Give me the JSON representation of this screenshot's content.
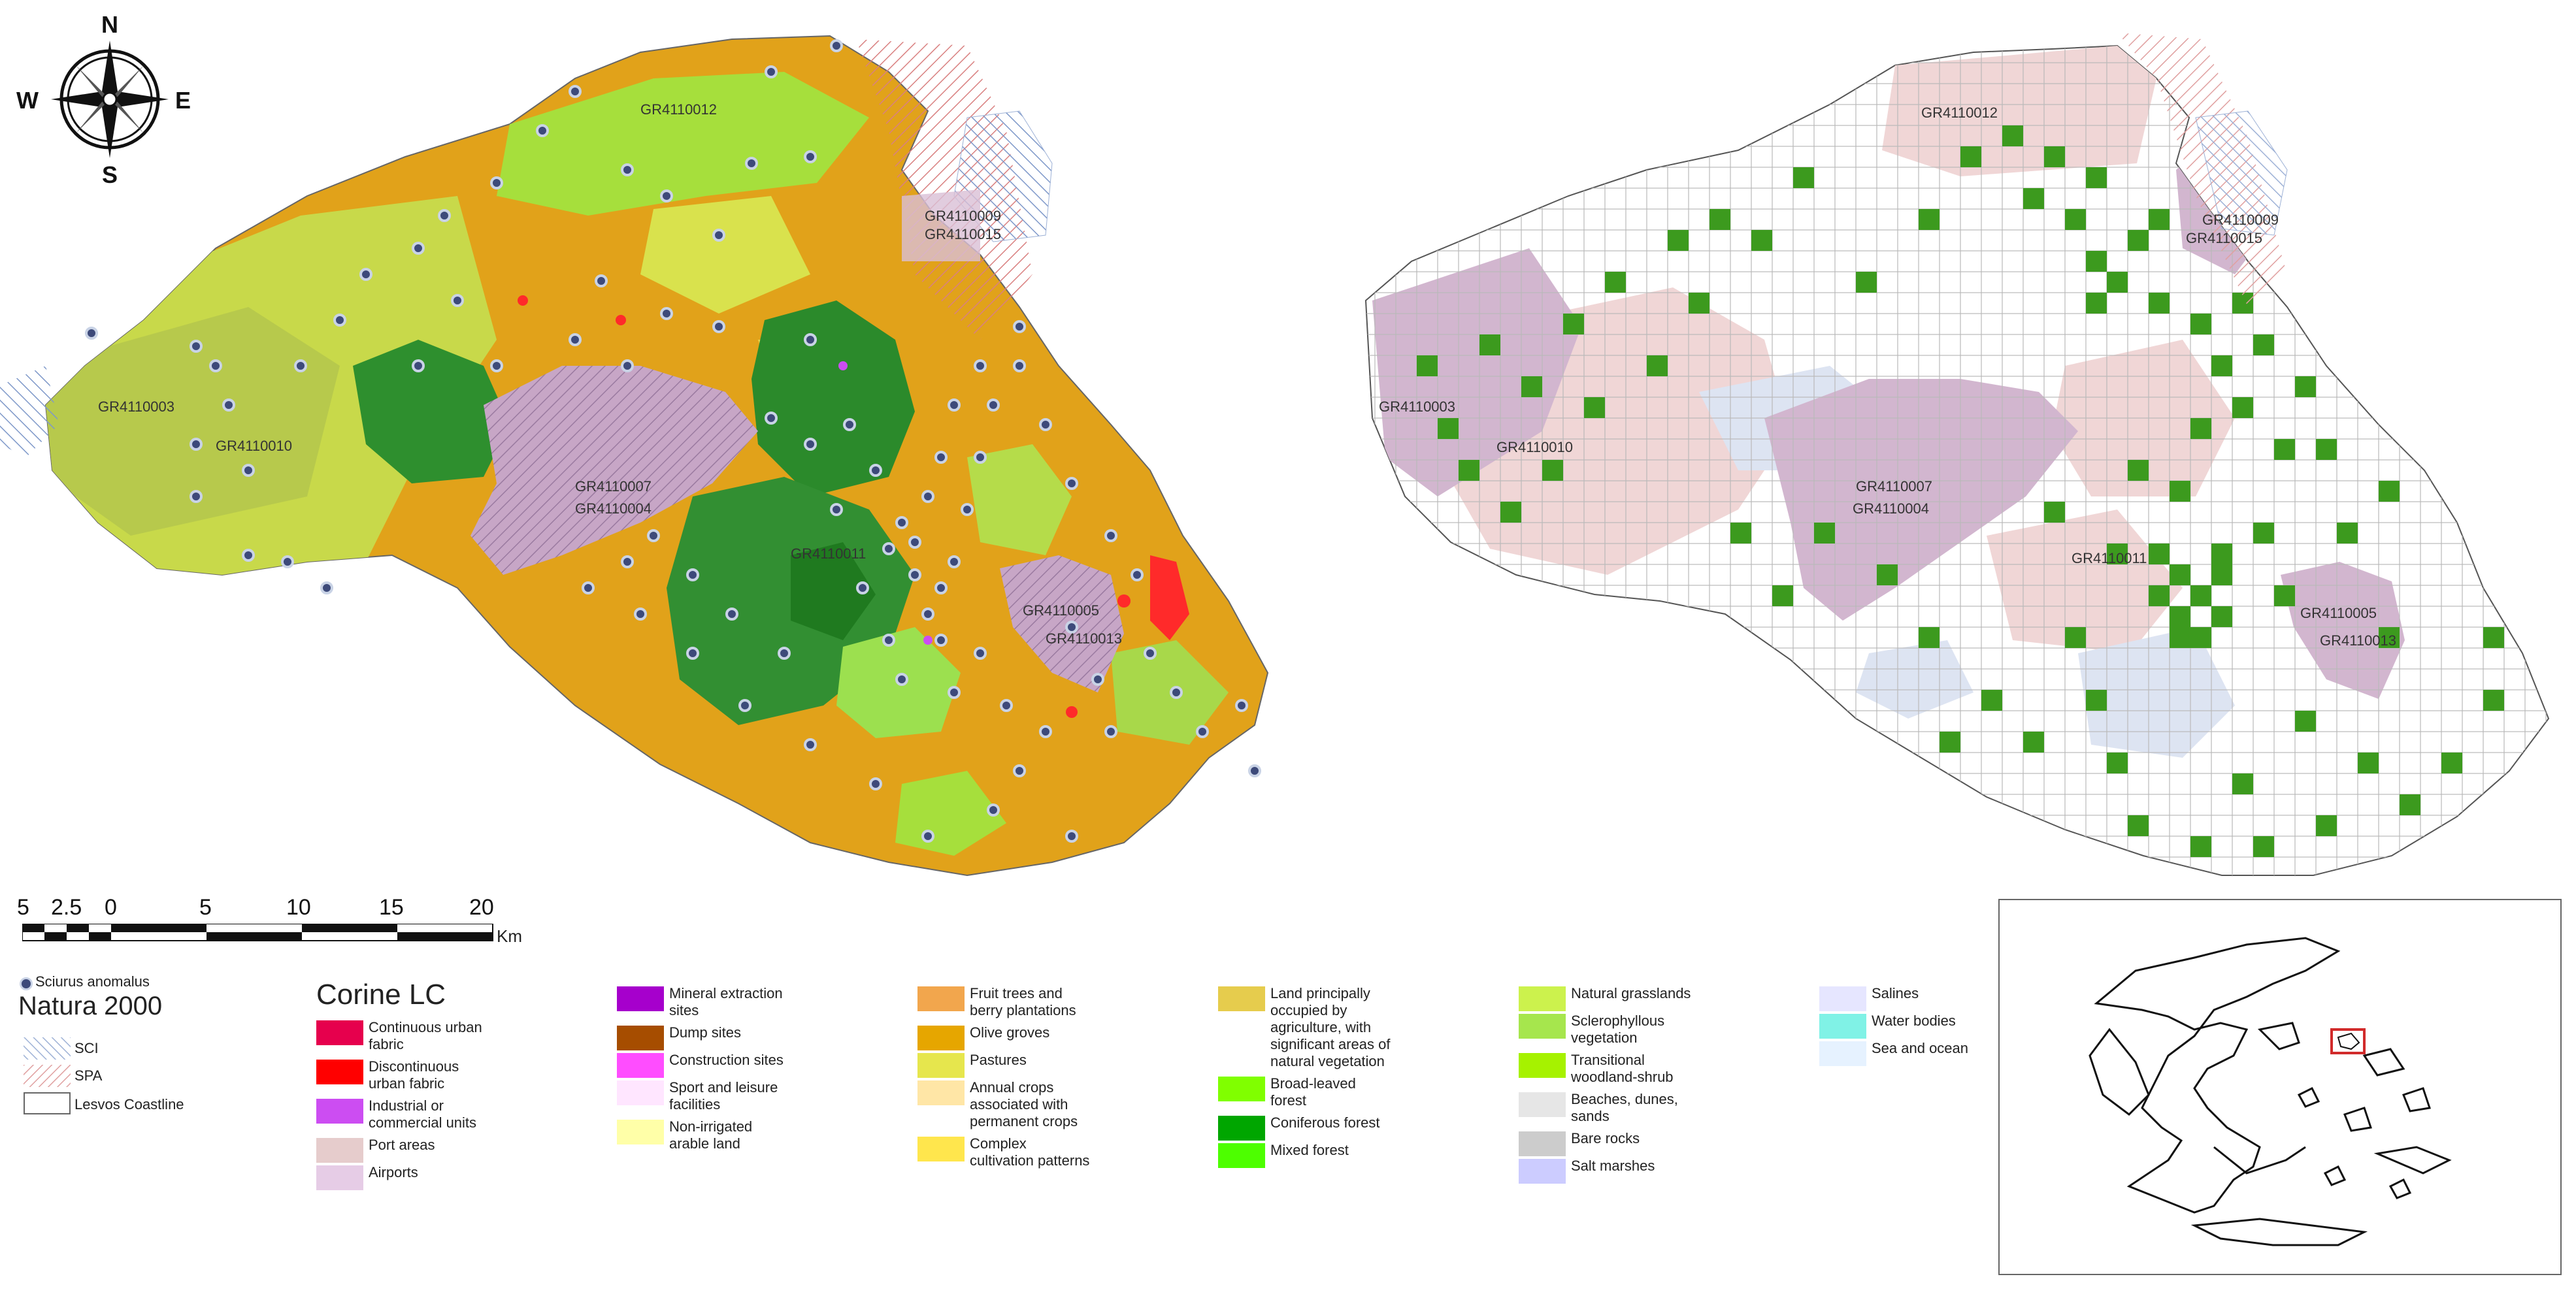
{
  "compass": {
    "n": "N",
    "s": "S",
    "e": "E",
    "w": "W"
  },
  "map_left": {
    "site_labels": [
      "GR4110012",
      "GR4110009",
      "GR4110015",
      "GR4110003",
      "GR4110010",
      "GR4110007",
      "GR4110004",
      "GR4110011",
      "GR4110005",
      "GR4110013"
    ]
  },
  "map_right": {
    "site_labels": [
      "GR4110012",
      "GR4110009",
      "GR4110015",
      "GR4110003",
      "GR4110010",
      "GR4110007",
      "GR4110004",
      "GR4110011",
      "GR4110005",
      "GR4110013"
    ]
  },
  "scalebar": {
    "ticks": [
      "5",
      "2.5",
      "0",
      "5",
      "10",
      "15",
      "20"
    ],
    "unit": "Km"
  },
  "legend_natura": {
    "points_label": "Sciurus anomalus",
    "title": "Natura 2000",
    "items": [
      {
        "label": "SCI",
        "color": "#a9bcdc",
        "icon": "hatch-blue"
      },
      {
        "label": "SPA",
        "color": "#e7b4b4",
        "icon": "hatch-red"
      },
      {
        "label": "Lesvos Coastline",
        "color": "#ffffff",
        "icon": "outline"
      }
    ]
  },
  "legend_corine": {
    "title": "Corine LC",
    "columns": [
      [
        {
          "label": "Continuous urban fabric",
          "color": "#e6004d"
        },
        {
          "label": "Discontinuous urban fabric",
          "color": "#ff0000"
        },
        {
          "label": "Industrial or commercial units",
          "color": "#cc4df2"
        },
        {
          "label": "Port areas",
          "color": "#e6cccc"
        },
        {
          "label": "Airports",
          "color": "#e6cce6"
        }
      ],
      [
        {
          "label": "Mineral extraction sites",
          "color": "#a600cc"
        },
        {
          "label": "Dump sites",
          "color": "#a64d00"
        },
        {
          "label": "Construction sites",
          "color": "#ff4dff"
        },
        {
          "label": "Sport and leisure facilities",
          "color": "#ffe6ff"
        },
        {
          "label": "Non-irrigated arable land",
          "color": "#ffffa8"
        }
      ],
      [
        {
          "label": "Fruit trees and berry plantations",
          "color": "#f2a64d"
        },
        {
          "label": "Olive groves",
          "color": "#e6a600"
        },
        {
          "label": "Pastures",
          "color": "#e6e64d"
        },
        {
          "label": "Annual crops associated with permanent crops",
          "color": "#ffe6a6"
        },
        {
          "label": "Complex cultivation patterns",
          "color": "#ffe64d"
        }
      ],
      [
        {
          "label": "Land principally occupied by agriculture, with significant areas of natural vegetation",
          "color": "#e6cc4d"
        },
        {
          "label": "Broad-leaved forest",
          "color": "#80ff00"
        },
        {
          "label": "Coniferous forest",
          "color": "#00a600"
        },
        {
          "label": "Mixed forest",
          "color": "#4dff00"
        }
      ],
      [
        {
          "label": "Natural grasslands",
          "color": "#ccf24d"
        },
        {
          "label": "Sclerophyllous vegetation",
          "color": "#a6e64d"
        },
        {
          "label": "Transitional woodland-shrub",
          "color": "#a6f200"
        },
        {
          "label": "Beaches, dunes, sands",
          "color": "#e6e6e6"
        },
        {
          "label": "Bare rocks",
          "color": "#cccccc"
        },
        {
          "label": "Salt marshes",
          "color": "#ccccff"
        }
      ],
      [
        {
          "label": "Salines",
          "color": "#e6e6ff"
        },
        {
          "label": "Water bodies",
          "color": "#80f2e6"
        },
        {
          "label": "Sea and ocean",
          "color": "#e6f2ff"
        }
      ]
    ]
  }
}
